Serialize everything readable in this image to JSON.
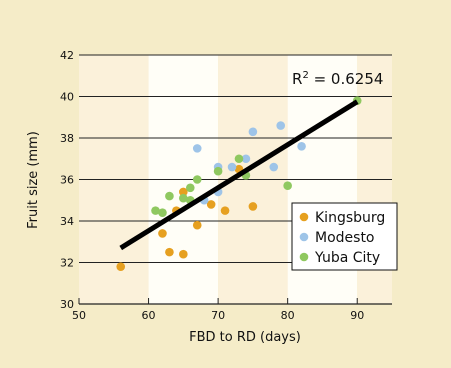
{
  "chart_data": {
    "type": "scatter",
    "xlabel": "FBD to RD (days)",
    "ylabel": "Fruit size (mm)",
    "xlim": [
      50,
      95
    ],
    "ylim": [
      30,
      42
    ],
    "x_ticks": [
      "50",
      "60",
      "70",
      "80",
      "90"
    ],
    "y_ticks": [
      "30",
      "32",
      "34",
      "36",
      "38",
      "40",
      "42"
    ],
    "x_tick_values": [
      50,
      60,
      70,
      80,
      90
    ],
    "y_tick_values": [
      30,
      32,
      34,
      36,
      38,
      40,
      42
    ],
    "grid": "horizontal",
    "annotation": {
      "base": "R",
      "sup": "2",
      "rest": " = 0.6254"
    },
    "legend": {
      "placement": "bottom-right"
    },
    "series": [
      {
        "name": "Kingsburg",
        "color": "#e6a020",
        "points": [
          {
            "x": 56,
            "y": 31.8
          },
          {
            "x": 62,
            "y": 33.4
          },
          {
            "x": 63,
            "y": 32.5
          },
          {
            "x": 64,
            "y": 34.5
          },
          {
            "x": 65,
            "y": 32.4
          },
          {
            "x": 65,
            "y": 35.4
          },
          {
            "x": 67,
            "y": 33.8
          },
          {
            "x": 69,
            "y": 34.8
          },
          {
            "x": 71,
            "y": 34.5
          },
          {
            "x": 73,
            "y": 36.5
          },
          {
            "x": 75,
            "y": 34.7
          }
        ]
      },
      {
        "name": "Modesto",
        "color": "#9ec4e8",
        "points": [
          {
            "x": 67,
            "y": 37.5
          },
          {
            "x": 68,
            "y": 35.0
          },
          {
            "x": 70,
            "y": 35.4
          },
          {
            "x": 70,
            "y": 36.6
          },
          {
            "x": 72,
            "y": 36.6
          },
          {
            "x": 74,
            "y": 37.0
          },
          {
            "x": 75,
            "y": 38.3
          },
          {
            "x": 78,
            "y": 36.6
          },
          {
            "x": 79,
            "y": 38.6
          },
          {
            "x": 82,
            "y": 37.6
          }
        ]
      },
      {
        "name": "Yuba City",
        "color": "#8fc860",
        "points": [
          {
            "x": 61,
            "y": 34.5
          },
          {
            "x": 62,
            "y": 34.4
          },
          {
            "x": 63,
            "y": 35.2
          },
          {
            "x": 65,
            "y": 35.1
          },
          {
            "x": 66,
            "y": 35.6
          },
          {
            "x": 66,
            "y": 35.0
          },
          {
            "x": 67,
            "y": 36.0
          },
          {
            "x": 70,
            "y": 36.4
          },
          {
            "x": 73,
            "y": 37.0
          },
          {
            "x": 74,
            "y": 36.2
          },
          {
            "x": 80,
            "y": 35.7
          },
          {
            "x": 90,
            "y": 39.8
          }
        ]
      }
    ],
    "trendline": {
      "color": "#000000",
      "x": [
        56,
        90
      ],
      "y": [
        32.7,
        39.75
      ]
    }
  }
}
